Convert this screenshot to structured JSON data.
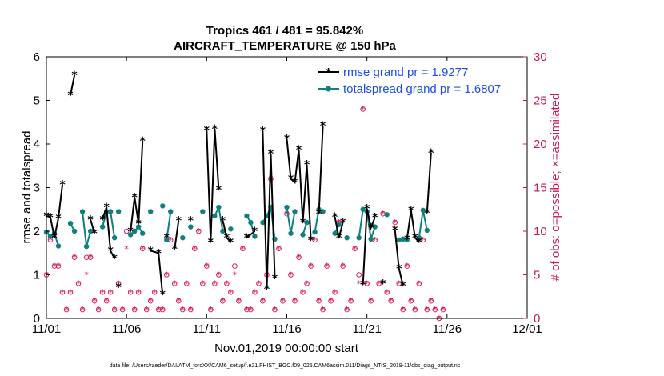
{
  "colors": {
    "rmse": "#000000",
    "spread": "#0f7f7f",
    "obs": "#d81b60",
    "legend_text": "#1f4fd8",
    "right_axis": "#c2185b"
  },
  "chart_data": {
    "type": "line",
    "title_line1": "Tropics 461 / 481 = 95.842%",
    "title_line2": "AIRCRAFT_TEMPERATURE @ 150 hPa",
    "xlabel": "Nov.01,2019 00:00:00 start",
    "ylabel_left": "rmse and totalspread",
    "ylabel_right": "# of obs: o=possible; ×=assimilated",
    "xlim": [
      1,
      31
    ],
    "ylim_left": [
      0,
      6
    ],
    "ylim_right": [
      0,
      30
    ],
    "x_tick_values": [
      1,
      6,
      11,
      16,
      21,
      26,
      31
    ],
    "x_tick_labels": [
      "11/01",
      "11/06",
      "11/11",
      "11/16",
      "11/21",
      "11/26",
      "12/01"
    ],
    "y_left_ticks": [
      "0",
      "1",
      "2",
      "3",
      "4",
      "5",
      "6"
    ],
    "y_right_ticks": [
      "0",
      "5",
      "10",
      "15",
      "20",
      "25",
      "30"
    ],
    "legend": [
      {
        "label": "rmse grand pr = 1.9277"
      },
      {
        "label": "totalspread grand pr = 1.6807"
      }
    ],
    "series": [
      {
        "name": "rmse",
        "segments": [
          [
            [
              1.0,
              2.35
            ],
            [
              1.25,
              2.32
            ],
            [
              1.5,
              1.85
            ],
            [
              1.75,
              2.3
            ],
            [
              2.0,
              3.07
            ]
          ],
          [
            [
              2.5,
              5.12
            ],
            [
              2.75,
              5.58
            ]
          ],
          [
            [
              3.75,
              2.27
            ],
            [
              4.0,
              1.95
            ]
          ],
          [
            [
              4.5,
              2.27
            ],
            [
              4.75,
              2.55
            ],
            [
              5.0,
              1.55
            ],
            [
              5.25,
              1.38
            ]
          ],
          [
            [
              5.5,
              0.72
            ]
          ],
          [
            [
              6.25,
              2.0
            ],
            [
              6.5,
              2.78
            ],
            [
              6.75,
              2.17
            ],
            [
              7.0,
              4.07
            ]
          ],
          [
            [
              7.5,
              1.55
            ],
            [
              8.0,
              1.5
            ],
            [
              8.25,
              0.55
            ]
          ],
          [
            [
              8.5,
              1.85
            ]
          ],
          [
            [
              9.0,
              1.6
            ],
            [
              9.25,
              2.25
            ]
          ],
          [
            [
              10.0,
              2.25
            ]
          ],
          [
            [
              11.0,
              4.32
            ],
            [
              11.25,
              1.75
            ],
            [
              11.5,
              4.35
            ],
            [
              11.75,
              2.95
            ]
          ],
          [
            [
              12.0,
              2.25
            ],
            [
              12.25,
              1.85
            ],
            [
              12.5,
              1.75
            ]
          ],
          [
            [
              13.5,
              1.85
            ],
            [
              14.0,
              2.0
            ]
          ],
          [
            [
              14.5,
              4.3
            ],
            [
              14.75,
              0.68
            ],
            [
              15.0,
              3.78
            ],
            [
              15.25,
              0.92
            ]
          ],
          [
            [
              16.0,
              4.12
            ],
            [
              16.25,
              3.2
            ],
            [
              16.5,
              3.12
            ],
            [
              16.75,
              3.87
            ],
            [
              17.0,
              2.2
            ],
            [
              17.25,
              3.53
            ],
            [
              17.5,
              1.8
            ]
          ],
          [
            [
              18.0,
              2.4
            ],
            [
              18.25,
              4.42
            ]
          ],
          [
            [
              19.0,
              2.33
            ],
            [
              19.25,
              1.85
            ],
            [
              19.5,
              2.2
            ]
          ],
          [
            [
              20.75,
              0.78
            ],
            [
              21.0,
              2.52
            ],
            [
              21.25,
              2.08
            ],
            [
              21.5,
              2.32
            ]
          ],
          [
            [
              22.0,
              0.8
            ]
          ],
          [
            [
              22.75,
              2.03
            ],
            [
              23.0,
              1.15
            ],
            [
              23.25,
              0.75
            ]
          ],
          [
            [
              23.5,
              1.82
            ],
            [
              23.75,
              2.48
            ],
            [
              24.0,
              1.85
            ],
            [
              24.25,
              1.75
            ]
          ],
          [
            [
              24.75,
              2.42
            ],
            [
              25.0,
              3.8
            ]
          ]
        ]
      },
      {
        "name": "totalspread",
        "segments": [
          [
            [
              1.0,
              1.98
            ],
            [
              1.25,
              1.88
            ],
            [
              1.5,
              1.95
            ],
            [
              1.75,
              1.66
            ]
          ],
          [
            [
              2.5,
              2.18
            ],
            [
              2.75,
              2.0
            ]
          ],
          [
            [
              3.25,
              2.45
            ],
            [
              3.5,
              1.65
            ],
            [
              3.75,
              2.0
            ]
          ],
          [
            [
              4.5,
              2.1
            ],
            [
              4.75,
              2.45
            ],
            [
              5.0,
              2.45
            ],
            [
              5.25,
              1.85
            ]
          ],
          [
            [
              5.5,
              2.45
            ]
          ],
          [
            [
              6.25,
              1.92
            ],
            [
              6.5,
              2.0
            ],
            [
              6.75,
              2.1
            ],
            [
              7.0,
              1.95
            ]
          ],
          [
            [
              7.5,
              2.45
            ]
          ],
          [
            [
              8.25,
              2.58
            ]
          ],
          [
            [
              8.5,
              1.8
            ],
            [
              8.75,
              2.45
            ]
          ],
          [
            [
              9.5,
              1.85
            ]
          ],
          [
            [
              10.0,
              2.1
            ]
          ],
          [
            [
              10.75,
              2.45
            ]
          ],
          [
            [
              11.5,
              2.35
            ],
            [
              11.75,
              2.55
            ],
            [
              12.0,
              2.0
            ]
          ],
          [
            [
              12.5,
              2.05
            ]
          ],
          [
            [
              13.5,
              2.35
            ],
            [
              13.75,
              2.2
            ],
            [
              14.0,
              1.88
            ]
          ],
          [
            [
              14.5,
              2.2
            ],
            [
              14.75,
              2.35
            ],
            [
              15.0,
              2.55
            ],
            [
              15.25,
              1.82
            ]
          ],
          [
            [
              16.0,
              2.55
            ],
            [
              16.25,
              1.95
            ],
            [
              16.5,
              2.45
            ]
          ],
          [
            [
              17.0,
              1.92
            ],
            [
              17.25,
              2.2
            ]
          ],
          [
            [
              17.75,
              1.98
            ],
            [
              18.0,
              2.5
            ],
            [
              18.25,
              2.45
            ]
          ],
          [
            [
              19.0,
              1.95
            ],
            [
              19.25,
              2.15
            ]
          ],
          [
            [
              19.75,
              1.85
            ]
          ],
          [
            [
              20.5,
              1.85
            ],
            [
              20.75,
              2.5
            ],
            [
              21.0,
              2.45
            ],
            [
              21.25,
              1.82
            ],
            [
              21.5,
              2.1
            ]
          ],
          [
            [
              22.25,
              2.38
            ]
          ],
          [
            [
              23.0,
              1.8
            ],
            [
              23.25,
              1.82
            ],
            [
              23.5,
              1.8
            ]
          ],
          [
            [
              24.25,
              1.85
            ],
            [
              24.5,
              2.48
            ],
            [
              24.75,
              2.02
            ]
          ]
        ]
      }
    ],
    "obs_possible": [
      [
        1.0,
        5
      ],
      [
        1.25,
        9
      ],
      [
        1.5,
        6
      ],
      [
        1.75,
        6
      ],
      [
        2.0,
        3
      ],
      [
        2.25,
        1
      ],
      [
        2.5,
        3
      ],
      [
        2.75,
        7
      ],
      [
        3.0,
        4
      ],
      [
        3.25,
        1
      ],
      [
        3.5,
        7
      ],
      [
        3.75,
        7
      ],
      [
        4.0,
        2
      ],
      [
        4.25,
        1
      ],
      [
        4.5,
        3
      ],
      [
        4.75,
        2
      ],
      [
        5.0,
        3
      ],
      [
        5.25,
        1
      ],
      [
        5.5,
        4
      ],
      [
        5.75,
        1
      ],
      [
        6.0,
        10
      ],
      [
        6.25,
        3
      ],
      [
        6.5,
        1
      ],
      [
        6.75,
        3
      ],
      [
        7.0,
        8
      ],
      [
        7.25,
        1
      ],
      [
        7.5,
        2
      ],
      [
        7.75,
        3
      ],
      [
        8.0,
        1
      ],
      [
        8.25,
        1
      ],
      [
        8.5,
        5
      ],
      [
        8.75,
        9
      ],
      [
        9.0,
        4
      ],
      [
        9.25,
        2
      ],
      [
        9.5,
        1
      ],
      [
        9.75,
        4
      ],
      [
        10.0,
        1
      ],
      [
        10.25,
        8
      ],
      [
        10.5,
        10
      ],
      [
        10.75,
        4
      ],
      [
        11.0,
        6
      ],
      [
        11.25,
        1
      ],
      [
        11.5,
        4
      ],
      [
        11.75,
        5
      ],
      [
        12.0,
        2
      ],
      [
        12.25,
        4
      ],
      [
        12.5,
        3
      ],
      [
        12.75,
        6
      ],
      [
        13.0,
        2
      ],
      [
        13.25,
        8
      ],
      [
        13.5,
        1
      ],
      [
        13.75,
        1
      ],
      [
        14.0,
        3
      ],
      [
        14.25,
        4
      ],
      [
        14.5,
        2
      ],
      [
        14.75,
        5
      ],
      [
        15.0,
        16
      ],
      [
        15.25,
        1
      ],
      [
        15.5,
        8
      ],
      [
        15.75,
        2
      ],
      [
        16.0,
        12
      ],
      [
        16.25,
        5
      ],
      [
        16.5,
        2
      ],
      [
        16.75,
        7
      ],
      [
        17.0,
        3
      ],
      [
        17.25,
        4
      ],
      [
        17.5,
        6
      ],
      [
        17.75,
        9
      ],
      [
        18.0,
        2
      ],
      [
        18.25,
        1
      ],
      [
        18.5,
        6
      ],
      [
        18.75,
        2
      ],
      [
        19.0,
        3
      ],
      [
        19.25,
        11
      ],
      [
        19.5,
        6
      ],
      [
        19.75,
        1
      ],
      [
        20.0,
        2
      ],
      [
        20.25,
        8
      ],
      [
        20.5,
        5
      ],
      [
        20.75,
        24
      ],
      [
        21.0,
        4
      ],
      [
        21.25,
        2
      ],
      [
        21.5,
        9
      ],
      [
        21.75,
        4
      ],
      [
        22.0,
        12
      ],
      [
        22.25,
        3
      ],
      [
        22.5,
        2
      ],
      [
        22.75,
        11
      ],
      [
        23.0,
        4
      ],
      [
        23.25,
        1
      ],
      [
        23.5,
        6
      ],
      [
        23.75,
        2
      ],
      [
        24.0,
        1
      ],
      [
        24.25,
        4
      ],
      [
        24.5,
        9
      ],
      [
        24.75,
        1
      ],
      [
        25.0,
        2
      ],
      [
        25.25,
        1
      ],
      [
        25.5,
        0
      ],
      [
        25.75,
        1
      ]
    ],
    "obs_assimilated": [
      [
        1.0,
        5
      ],
      [
        1.25,
        9
      ],
      [
        1.5,
        6
      ],
      [
        1.75,
        6
      ],
      [
        2.0,
        3
      ],
      [
        2.25,
        1
      ],
      [
        2.5,
        3
      ],
      [
        2.75,
        7
      ],
      [
        3.0,
        4
      ],
      [
        3.25,
        1
      ],
      [
        3.5,
        5
      ],
      [
        3.75,
        7
      ],
      [
        4.0,
        2
      ],
      [
        4.25,
        1
      ],
      [
        4.5,
        3
      ],
      [
        4.75,
        2
      ],
      [
        5.0,
        3
      ],
      [
        5.25,
        1
      ],
      [
        5.5,
        4
      ],
      [
        5.75,
        1
      ],
      [
        6.0,
        8
      ],
      [
        6.25,
        3
      ],
      [
        6.5,
        1
      ],
      [
        6.75,
        3
      ],
      [
        7.0,
        8
      ],
      [
        7.25,
        1
      ],
      [
        7.5,
        2
      ],
      [
        7.75,
        3
      ],
      [
        8.0,
        1
      ],
      [
        8.25,
        1
      ],
      [
        8.5,
        5
      ],
      [
        8.75,
        9
      ],
      [
        9.0,
        4
      ],
      [
        9.25,
        2
      ],
      [
        9.5,
        1
      ],
      [
        9.75,
        4
      ],
      [
        10.0,
        1
      ],
      [
        10.25,
        8
      ],
      [
        10.5,
        10
      ],
      [
        10.75,
        4
      ],
      [
        11.0,
        6
      ],
      [
        11.25,
        1
      ],
      [
        11.5,
        4
      ],
      [
        11.75,
        5
      ],
      [
        12.0,
        2
      ],
      [
        12.25,
        4
      ],
      [
        12.5,
        3
      ],
      [
        12.75,
        5
      ],
      [
        13.0,
        2
      ],
      [
        13.25,
        8
      ],
      [
        13.5,
        1
      ],
      [
        13.75,
        1
      ],
      [
        14.0,
        3
      ],
      [
        14.25,
        4
      ],
      [
        14.5,
        2
      ],
      [
        14.75,
        5
      ],
      [
        15.0,
        16
      ],
      [
        15.25,
        1
      ],
      [
        15.5,
        8
      ],
      [
        15.75,
        2
      ],
      [
        16.0,
        12
      ],
      [
        16.25,
        5
      ],
      [
        16.5,
        2
      ],
      [
        16.75,
        7
      ],
      [
        17.0,
        3
      ],
      [
        17.25,
        4
      ],
      [
        17.5,
        6
      ],
      [
        17.75,
        9
      ],
      [
        18.0,
        2
      ],
      [
        18.25,
        1
      ],
      [
        18.5,
        6
      ],
      [
        18.75,
        2
      ],
      [
        19.0,
        3
      ],
      [
        19.25,
        11
      ],
      [
        19.5,
        6
      ],
      [
        19.75,
        1
      ],
      [
        20.0,
        2
      ],
      [
        20.25,
        8
      ],
      [
        20.5,
        4
      ],
      [
        20.75,
        24
      ],
      [
        21.0,
        4
      ],
      [
        21.25,
        2
      ],
      [
        21.5,
        9
      ],
      [
        21.75,
        4
      ],
      [
        22.0,
        12
      ],
      [
        22.25,
        3
      ],
      [
        22.5,
        2
      ],
      [
        22.75,
        11
      ],
      [
        23.0,
        4
      ],
      [
        23.25,
        1
      ],
      [
        23.5,
        6
      ],
      [
        23.75,
        2
      ],
      [
        24.0,
        1
      ],
      [
        24.25,
        4
      ],
      [
        24.5,
        9
      ],
      [
        24.75,
        1
      ],
      [
        25.0,
        2
      ],
      [
        25.25,
        1
      ],
      [
        25.5,
        0
      ],
      [
        25.75,
        1
      ]
    ],
    "footnote": "data file: /Users/raeder/DAI/ATM_forcXX/CAM6_setup/f.e21.FHIST_BGC.f09_025.CAM6assim.011/Diags_NTrS_2019-11/obs_diag_output.nc"
  }
}
